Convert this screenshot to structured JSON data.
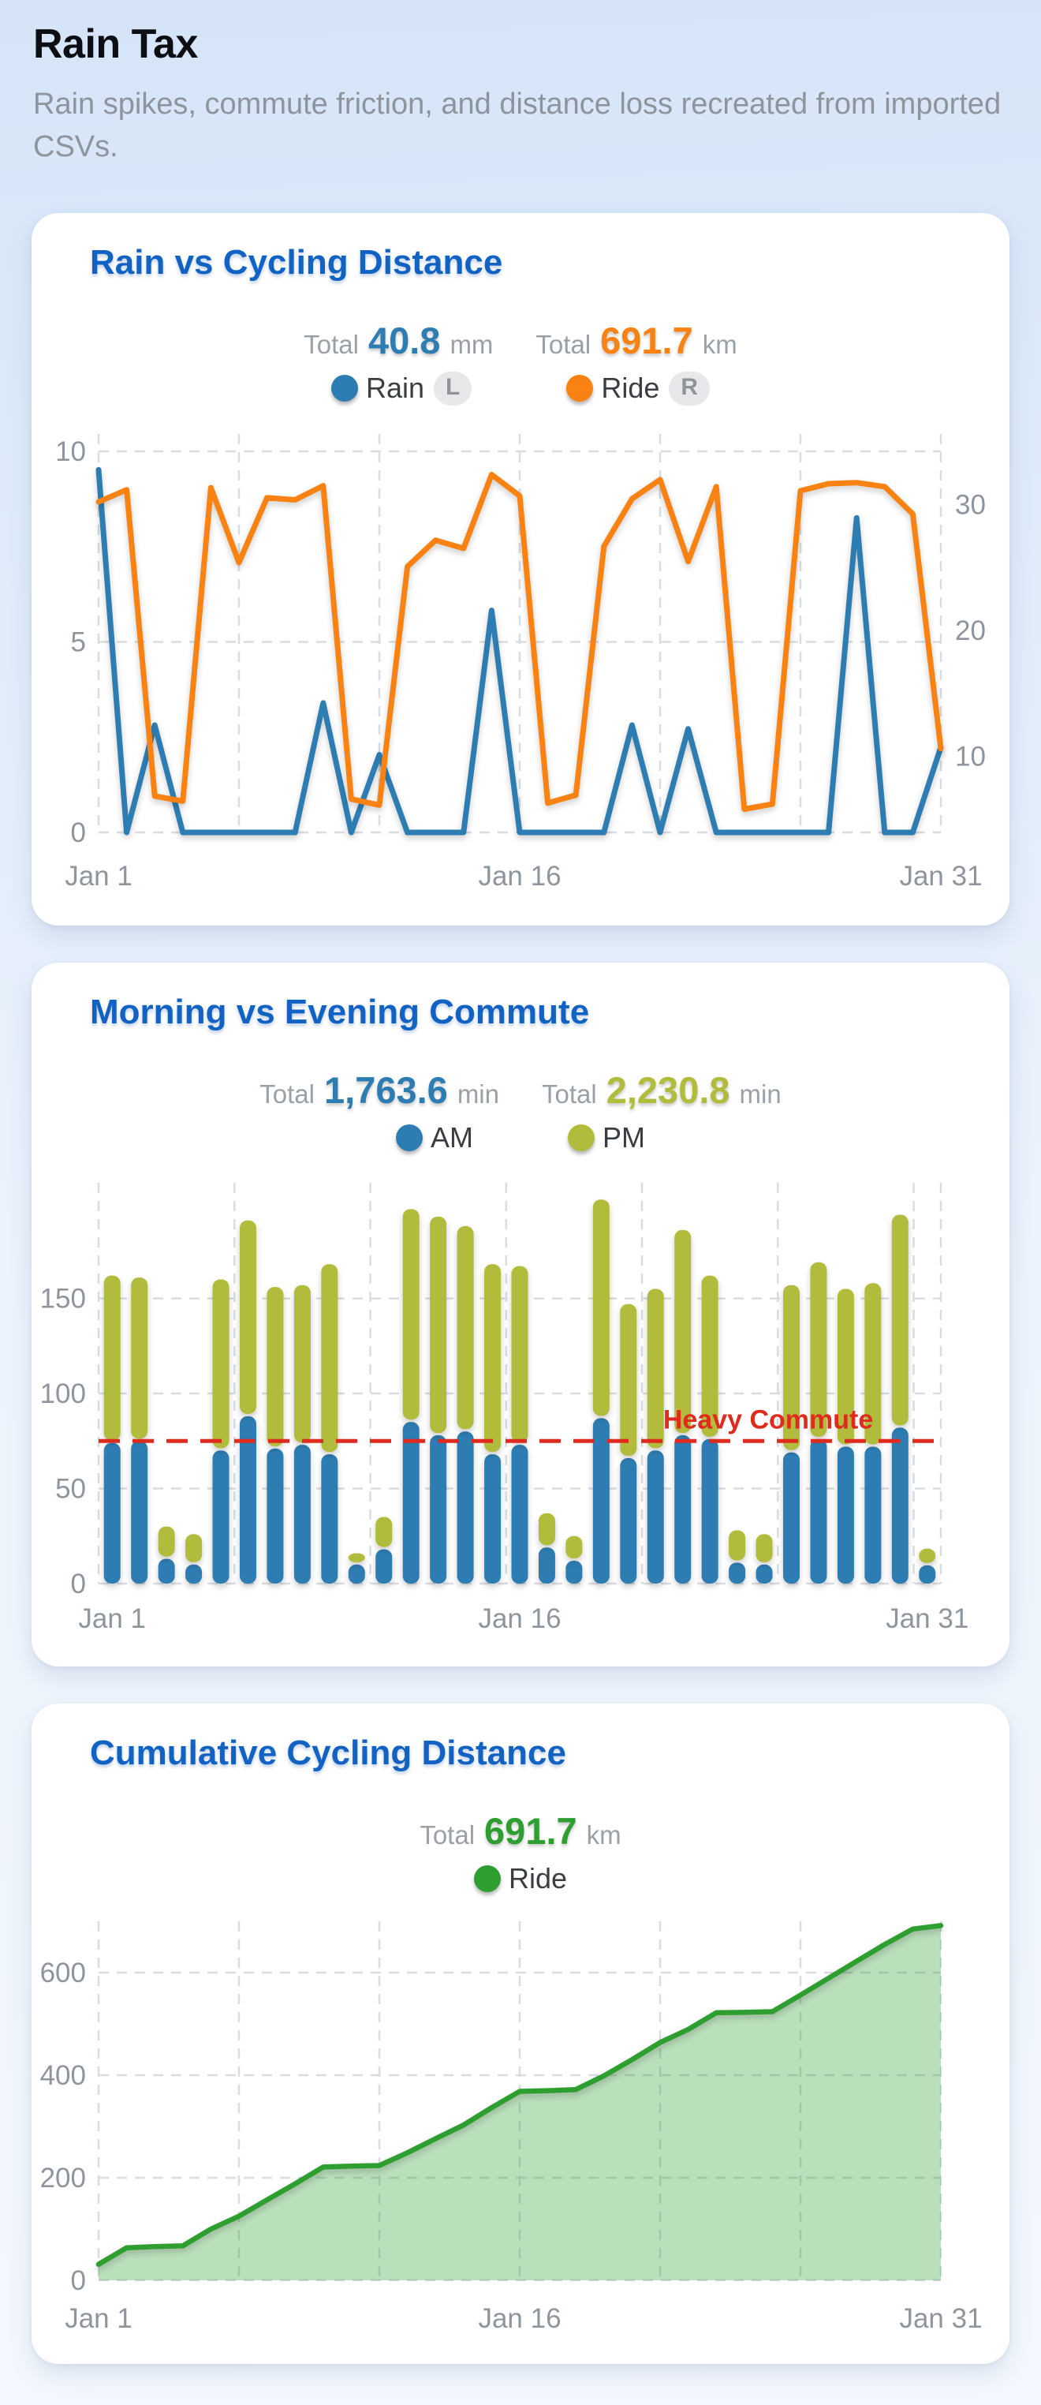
{
  "page": {
    "title": "Rain Tax",
    "subtitle": "Rain spikes, commute friction, and distance loss recreated from imported CSVs."
  },
  "colors": {
    "rain_blue": "#2E7DB2",
    "ride_orange": "#F98212",
    "pm_olive": "#B2BC3C",
    "cumulative_green": "#2F9E30",
    "threshold_red": "#DF2B1E",
    "card_title_blue": "#1262C4",
    "axis_gray": "#8F959D",
    "card_bg": "#FFFFFF"
  },
  "cards": [
    {
      "title": "Rain vs Cycling Distance",
      "totals": [
        {
          "label": "Total",
          "value": "40.8",
          "unit": "mm"
        },
        {
          "label": "Total",
          "value": "691.7",
          "unit": "km"
        }
      ],
      "legend": [
        {
          "label": "Rain",
          "badge": "L"
        },
        {
          "label": "Ride",
          "badge": "R"
        }
      ]
    },
    {
      "title": "Morning vs Evening Commute",
      "totals": [
        {
          "label": "Total",
          "value": "1,763.6",
          "unit": "min"
        },
        {
          "label": "Total",
          "value": "2,230.8",
          "unit": "min"
        }
      ],
      "legend": [
        {
          "label": "AM"
        },
        {
          "label": "PM"
        }
      ]
    },
    {
      "title": "Cumulative Cycling Distance",
      "totals": [
        {
          "label": "Total",
          "value": "691.7",
          "unit": "km"
        }
      ],
      "legend": [
        {
          "label": "Ride"
        }
      ]
    }
  ],
  "chart_data": [
    {
      "type": "line",
      "title": "Rain vs Cycling Distance",
      "days": 31,
      "x_tick_labels": [
        "Jan 1",
        "Jan 16",
        "Jan 31"
      ],
      "left_axis": {
        "ticks": [
          0,
          5,
          10
        ],
        "unit": "mm",
        "max": 10
      },
      "right_axis": {
        "ticks": [
          10,
          20,
          30
        ],
        "unit": "km",
        "max": 35
      },
      "grid": true,
      "legend_position": "top",
      "series": [
        {
          "name": "Rain",
          "axis": "left",
          "color": "#2E7DB2",
          "total": 40.8,
          "values": [
            9.8,
            0,
            2.9,
            0,
            0,
            0,
            0,
            0,
            3.5,
            0,
            2.1,
            0,
            0,
            0,
            6.0,
            0,
            0,
            0,
            0,
            2.9,
            0,
            2.8,
            0,
            0,
            0,
            0,
            0,
            8.5,
            0,
            0,
            2.3
          ]
        },
        {
          "name": "Ride",
          "axis": "right",
          "color": "#F98212",
          "total": 691.7,
          "values": [
            31.2,
            32.4,
            2.1,
            1.6,
            32.6,
            25.2,
            31.6,
            31.4,
            32.8,
            1.8,
            1.2,
            24.8,
            27.4,
            26.6,
            33.9,
            31.8,
            1.4,
            2.2,
            26.8,
            31.5,
            33.4,
            25.3,
            32.7,
            0.8,
            1.3,
            32.3,
            33.0,
            33.1,
            32.7,
            30.0,
            6.8
          ]
        }
      ]
    },
    {
      "type": "bar",
      "subtype": "stacked",
      "title": "Morning vs Evening Commute",
      "days": 31,
      "x_tick_labels": [
        "Jan 1",
        "Jan 16",
        "Jan 31"
      ],
      "y_axis": {
        "ticks": [
          0,
          50,
          100,
          150
        ],
        "unit": "min",
        "max": 210
      },
      "grid": true,
      "threshold": {
        "value": 75,
        "label": "Heavy Commute",
        "color": "#DF2B1E"
      },
      "series": [
        {
          "name": "AM",
          "color": "#2E7DB2",
          "total": 1763.6,
          "values": [
            74,
            75,
            13,
            10,
            70,
            88,
            71,
            73,
            68,
            10,
            18,
            85,
            78,
            80,
            68,
            73,
            19,
            12,
            87,
            66,
            70,
            78,
            76,
            11,
            10,
            69,
            76,
            72,
            72,
            82,
            9.6
          ]
        },
        {
          "name": "PM",
          "color": "#B2BC3C",
          "total": 2230.8,
          "values": [
            88,
            86,
            17,
            16,
            90,
            103,
            85,
            84,
            100,
            6,
            17,
            112,
            115,
            108,
            100,
            94,
            18,
            13,
            115,
            81,
            85,
            108,
            86,
            17,
            16,
            88,
            93,
            83,
            86,
            112,
            8.8
          ]
        }
      ]
    },
    {
      "type": "area",
      "title": "Cumulative Cycling Distance",
      "days": 31,
      "x_tick_labels": [
        "Jan 1",
        "Jan 16",
        "Jan 31"
      ],
      "y_axis": {
        "ticks": [
          0,
          200,
          400,
          600
        ],
        "unit": "km",
        "max": 700
      },
      "grid": true,
      "series": [
        {
          "name": "Ride",
          "color": "#2F9E30",
          "fill_opacity": 0.33,
          "total": 691.7,
          "values": [
            31.2,
            63.6,
            65.7,
            67.3,
            99.9,
            125.1,
            156.7,
            188.1,
            220.9,
            222.7,
            223.9,
            248.7,
            276.1,
            302.7,
            336.6,
            368.4,
            369.8,
            372.0,
            398.8,
            430.3,
            463.7,
            489.0,
            521.7,
            522.5,
            523.8,
            556.1,
            589.1,
            622.2,
            654.9,
            684.9,
            691.7
          ]
        }
      ]
    }
  ]
}
